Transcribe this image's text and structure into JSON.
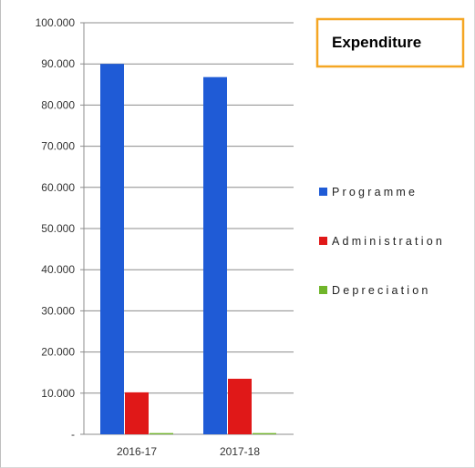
{
  "chart_data": {
    "type": "bar",
    "title": "Expenditure",
    "categories": [
      "2016-17",
      "2017-18"
    ],
    "series": [
      {
        "name": "Programme",
        "values": [
          90.0,
          86.8
        ],
        "color": "#1f5bd6"
      },
      {
        "name": "Administration",
        "values": [
          10.2,
          13.5
        ],
        "color": "#e01818"
      },
      {
        "name": "Depreciation",
        "values": [
          0.3,
          0.3
        ],
        "color": "#70b52a"
      }
    ],
    "ylim": [
      0,
      100
    ],
    "yticks": [
      "-",
      "10.000",
      "20.000",
      "30.000",
      "40.000",
      "50.000",
      "60.000",
      "70.000",
      "80.000",
      "90.000",
      "100.000"
    ],
    "ytick_values": [
      0,
      10,
      20,
      30,
      40,
      50,
      60,
      70,
      80,
      90,
      100
    ],
    "grid": true,
    "legend_position": "right",
    "title_box_color": "#f5a623"
  }
}
